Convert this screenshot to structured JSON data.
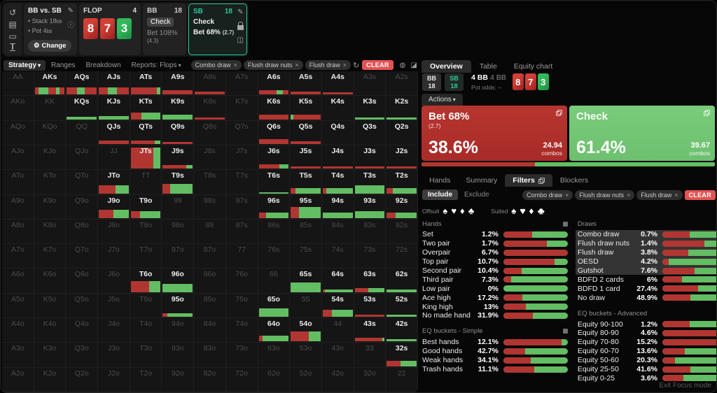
{
  "window": {
    "footer": "Exit Focus mode"
  },
  "sidebar": {
    "icons": [
      {
        "name": "reset-icon",
        "glyph": "↺"
      },
      {
        "name": "save-icon",
        "glyph": "▤"
      },
      {
        "name": "controller-icon",
        "glyph": "▭"
      },
      {
        "name": "bet-slider-icon",
        "glyph": "I",
        "cls": "ibeam"
      }
    ]
  },
  "header": {
    "config": {
      "title": "BB vs. SB",
      "bullet1": "• Stack 18",
      "bullet1_unit": "bb",
      "bullet2": "• Pot 4",
      "bullet2_unit": "bb",
      "change_label": "Change",
      "gear": "⚙",
      "info": "ⓘ",
      "pencil": "✎"
    },
    "flop": {
      "label": "FLOP",
      "count": "4",
      "cards": [
        {
          "rank": "8",
          "color": "red"
        },
        {
          "rank": "7",
          "color": "red"
        },
        {
          "rank": "3",
          "color": "green"
        }
      ]
    },
    "bb": {
      "name": "BB",
      "stack": "18",
      "check_label": "Check",
      "bet_label": "Bet 108%",
      "bet_note": "(4.3)"
    },
    "sb": {
      "name": "SB",
      "stack": "18",
      "check_label": "Check",
      "bet_label": "Bet 68%",
      "bet_note": "(2.7)",
      "pencil": "✎"
    }
  },
  "toolbar": {
    "tab_strategy": "Strategy",
    "tab_ranges": "Ranges",
    "tab_breakdown": "Breakdown",
    "tab_reports": "Reports: Flops",
    "filters": [
      "Combo draw",
      "Flush draw nuts",
      "Flush draw"
    ],
    "refresh_glyph": "↻",
    "clear_label": "CLEAR",
    "icons": [
      {
        "name": "strategy-view-icon",
        "glyph": "◍"
      },
      {
        "name": "range-split-icon",
        "glyph": "◪"
      },
      {
        "name": "grid-small-icon",
        "glyph": "∷"
      },
      {
        "name": "grid-large-icon",
        "glyph": "⠿"
      },
      {
        "name": "solid-view-icon",
        "glyph": "■"
      }
    ]
  },
  "matrix": {
    "rows": [
      [
        {
          "l": "AA"
        },
        {
          "l": "AKs",
          "on": 1,
          "h": 10,
          "s": "r12 g33 r25 g12 r18"
        },
        {
          "l": "AQs",
          "on": 1,
          "h": 10,
          "s": "r35 g25 r40"
        },
        {
          "l": "AJs",
          "on": 1,
          "h": 10,
          "s": "r30 g30 r40"
        },
        {
          "l": "ATs",
          "on": 1,
          "h": 10,
          "s": "r88 g12"
        },
        {
          "l": "A9s",
          "on": 1,
          "h": 6,
          "s": "r100"
        },
        {
          "l": "A8s",
          "h": 4,
          "s": "r100"
        },
        {
          "l": "A7s"
        },
        {
          "l": "A6s",
          "on": 1,
          "h": 6,
          "s": "r60 g20 r20"
        },
        {
          "l": "A5s",
          "on": 1,
          "h": 4,
          "s": "r100"
        },
        {
          "l": "A4s",
          "on": 1,
          "h": 3,
          "s": "r100"
        },
        {
          "l": "A3s"
        },
        {
          "l": "A2s"
        }
      ],
      [
        {
          "l": "AKo"
        },
        {
          "l": "KK"
        },
        {
          "l": "KQs",
          "on": 1,
          "h": 4,
          "s": "g100"
        },
        {
          "l": "KJs",
          "on": 1,
          "h": 5,
          "s": "g100"
        },
        {
          "l": "KTs",
          "on": 1,
          "h": 10,
          "s": "r35 g65"
        },
        {
          "l": "K9s",
          "on": 1,
          "h": 7,
          "s": "g100"
        },
        {
          "l": "K8s",
          "h": 3,
          "s": "r100"
        },
        {
          "l": "K7s"
        },
        {
          "l": "K6s",
          "on": 1,
          "h": 7,
          "s": "r100"
        },
        {
          "l": "K5s",
          "on": 1,
          "h": 7,
          "s": "g10 r90"
        },
        {
          "l": "K4s",
          "on": 1
        },
        {
          "l": "K3s",
          "on": 1,
          "h": 3,
          "s": "g100"
        },
        {
          "l": "K2s",
          "on": 1,
          "h": 3,
          "s": "g100"
        }
      ],
      [
        {
          "l": "AQo"
        },
        {
          "l": "KQo"
        },
        {
          "l": "QQ"
        },
        {
          "l": "QJs",
          "on": 1,
          "h": 5,
          "s": "r100"
        },
        {
          "l": "QTs",
          "on": 1,
          "h": 5,
          "s": "r80 g20"
        },
        {
          "l": "Q9s",
          "on": 1,
          "h": 3,
          "s": "r100"
        },
        {
          "l": "Q8s"
        },
        {
          "l": "Q7s"
        },
        {
          "l": "Q6s",
          "on": 1,
          "h": 7,
          "s": "r100"
        },
        {
          "l": "Q5s",
          "on": 1,
          "h": 4,
          "s": "r100"
        },
        {
          "l": "Q4s",
          "on": 1
        },
        {
          "l": "Q3s",
          "on": 1
        },
        {
          "l": "Q2s",
          "on": 1
        }
      ],
      [
        {
          "l": "AJo"
        },
        {
          "l": "KJo"
        },
        {
          "l": "QJo"
        },
        {
          "l": "JJ"
        },
        {
          "l": "JTs",
          "on": 1,
          "h": 30,
          "s": "r75 g25"
        },
        {
          "l": "J9s",
          "on": 1,
          "h": 5,
          "s": "r78 g22"
        },
        {
          "l": "J8s"
        },
        {
          "l": "J7s"
        },
        {
          "l": "J6s",
          "on": 1,
          "h": 6,
          "s": "r70 g30"
        },
        {
          "l": "J5s",
          "on": 1,
          "h": 3,
          "s": "r100"
        },
        {
          "l": "J4s",
          "on": 1,
          "h": 3,
          "s": "r100"
        },
        {
          "l": "J3s",
          "on": 1,
          "h": 3,
          "s": "r100"
        },
        {
          "l": "J2s",
          "on": 1,
          "h": 3,
          "s": "r100"
        }
      ],
      [
        {
          "l": "ATo"
        },
        {
          "l": "KTo"
        },
        {
          "l": "QTo"
        },
        {
          "l": "JTo",
          "on": 1,
          "h": 12,
          "s": "r55 g45"
        },
        {
          "l": "TT"
        },
        {
          "l": "T9s",
          "on": 1,
          "h": 14,
          "s": "r25 g75"
        },
        {
          "l": "T8s"
        },
        {
          "l": "T7s"
        },
        {
          "l": "T6s",
          "on": 1,
          "h": 2,
          "s": "g100"
        },
        {
          "l": "T5s",
          "on": 1,
          "h": 8,
          "s": "r15 g85"
        },
        {
          "l": "T4s",
          "on": 1,
          "h": 8,
          "s": "r12 g88"
        },
        {
          "l": "T3s",
          "on": 1,
          "h": 12,
          "s": "g100"
        },
        {
          "l": "T2s",
          "on": 1,
          "h": 8,
          "s": "r20 g80"
        }
      ],
      [
        {
          "l": "A9o"
        },
        {
          "l": "K9o"
        },
        {
          "l": "Q9o"
        },
        {
          "l": "J9o",
          "on": 1,
          "h": 12,
          "s": "r50 g50"
        },
        {
          "l": "T9o",
          "on": 1,
          "h": 10,
          "s": "r30 g70"
        },
        {
          "l": "99"
        },
        {
          "l": "98s"
        },
        {
          "l": "97s"
        },
        {
          "l": "96s",
          "on": 1,
          "h": 8,
          "s": "r25 g75"
        },
        {
          "l": "95s",
          "on": 1,
          "h": 16,
          "s": "r28 g72"
        },
        {
          "l": "94s",
          "on": 1,
          "h": 8,
          "s": "g100"
        },
        {
          "l": "93s",
          "on": 1,
          "h": 10,
          "s": "g100"
        },
        {
          "l": "92s",
          "on": 1,
          "h": 8,
          "s": "r30 g70"
        }
      ],
      [
        {
          "l": "A8o"
        },
        {
          "l": "K8o"
        },
        {
          "l": "Q8o"
        },
        {
          "l": "J8o"
        },
        {
          "l": "T8o"
        },
        {
          "l": "98o"
        },
        {
          "l": "88"
        },
        {
          "l": "87s"
        },
        {
          "l": "86s"
        },
        {
          "l": "85s"
        },
        {
          "l": "84s"
        },
        {
          "l": "83s"
        },
        {
          "l": "82s"
        }
      ],
      [
        {
          "l": "A7o"
        },
        {
          "l": "K7o"
        },
        {
          "l": "Q7o"
        },
        {
          "l": "J7o"
        },
        {
          "l": "T7o"
        },
        {
          "l": "97o"
        },
        {
          "l": "87o"
        },
        {
          "l": "77"
        },
        {
          "l": "76s"
        },
        {
          "l": "75s"
        },
        {
          "l": "74s"
        },
        {
          "l": "73s"
        },
        {
          "l": "72s"
        }
      ],
      [
        {
          "l": "A6o"
        },
        {
          "l": "K6o"
        },
        {
          "l": "Q6o"
        },
        {
          "l": "J6o"
        },
        {
          "l": "T6o",
          "on": 1,
          "h": 16,
          "s": "r62 g38"
        },
        {
          "l": "96o",
          "on": 1,
          "h": 12,
          "s": "g100"
        },
        {
          "l": "86o"
        },
        {
          "l": "76o"
        },
        {
          "l": "66"
        },
        {
          "l": "65s",
          "on": 1,
          "h": 14,
          "s": "g100"
        },
        {
          "l": "64s",
          "on": 1,
          "h": 4,
          "s": "r8 g92"
        },
        {
          "l": "63s",
          "on": 1,
          "h": 6,
          "s": "r45 g55"
        },
        {
          "l": "62s",
          "on": 1,
          "h": 4,
          "s": "g100"
        }
      ],
      [
        {
          "l": "A5o"
        },
        {
          "l": "K5o"
        },
        {
          "l": "Q5o"
        },
        {
          "l": "J5o"
        },
        {
          "l": "T5o"
        },
        {
          "l": "95o",
          "on": 1,
          "h": 5,
          "s": "r15 g85"
        },
        {
          "l": "85o"
        },
        {
          "l": "75o"
        },
        {
          "l": "65o",
          "on": 1,
          "h": 12,
          "s": "g100"
        },
        {
          "l": "55"
        },
        {
          "l": "54s",
          "on": 1,
          "h": 10,
          "s": "r30 g70"
        },
        {
          "l": "53s",
          "on": 1,
          "h": 3,
          "s": "r100"
        },
        {
          "l": "52s",
          "on": 1,
          "h": 3,
          "s": "g100"
        }
      ],
      [
        {
          "l": "A4o"
        },
        {
          "l": "K4o"
        },
        {
          "l": "Q4o"
        },
        {
          "l": "J4o"
        },
        {
          "l": "T4o"
        },
        {
          "l": "94o"
        },
        {
          "l": "84o"
        },
        {
          "l": "74o"
        },
        {
          "l": "64o",
          "on": 1,
          "h": 8,
          "s": "r12 g88"
        },
        {
          "l": "54o",
          "on": 1,
          "h": 14,
          "s": "r60 g40"
        },
        {
          "l": "44"
        },
        {
          "l": "43s",
          "on": 1,
          "h": 5,
          "s": "r92 g8"
        },
        {
          "l": "42s",
          "on": 1,
          "h": 3,
          "s": "g100"
        }
      ],
      [
        {
          "l": "A3o"
        },
        {
          "l": "K3o"
        },
        {
          "l": "Q3o"
        },
        {
          "l": "J3o"
        },
        {
          "l": "T3o"
        },
        {
          "l": "93o"
        },
        {
          "l": "83o"
        },
        {
          "l": "73o"
        },
        {
          "l": "63o"
        },
        {
          "l": "53o"
        },
        {
          "l": "43o"
        },
        {
          "l": "33"
        },
        {
          "l": "32s",
          "on": 1,
          "h": 8,
          "s": "r45 g55"
        }
      ],
      [
        {
          "l": "A2o"
        },
        {
          "l": "K2o"
        },
        {
          "l": "Q2o"
        },
        {
          "l": "J2o"
        },
        {
          "l": "T2o"
        },
        {
          "l": "92o"
        },
        {
          "l": "82o"
        },
        {
          "l": "72o"
        },
        {
          "l": "62o"
        },
        {
          "l": "52o"
        },
        {
          "l": "42o"
        },
        {
          "l": "32o"
        },
        {
          "l": "22"
        }
      ]
    ]
  },
  "right": {
    "tab_overview": "Overview",
    "tab_table": "Table",
    "tab_equity": "Equity chart",
    "bb_badge": {
      "name": "BB",
      "stack": "18"
    },
    "sb_badge": {
      "name": "SB",
      "stack": "18"
    },
    "pot": {
      "bold": "4 BB",
      "dim": "4 BB",
      "odds_label": "Pot odds:",
      "odds_value": "–"
    },
    "actions_label": "Actions",
    "bet_box": {
      "title": "Bet 68%",
      "note": "(2.7)",
      "freq": "38.6%",
      "combos": "24.94",
      "combos_label": "combos"
    },
    "check_box": {
      "title": "Check",
      "freq": "61.4%",
      "combos": "39.67",
      "combos_label": "combos"
    },
    "strip": {
      "red_pct": 38.6
    },
    "subtab_hands": "Hands",
    "subtab_summary": "Summary",
    "subtab_filters": "Filters",
    "subtab_blockers": "Blockers",
    "filter_mode": {
      "include": "Include",
      "exclude": "Exclude"
    },
    "filters": [
      "Combo draw",
      "Flush draw nuts",
      "Flush draw"
    ],
    "clear_label": "CLEAR",
    "suits": {
      "offsuit_label": "Offsuit",
      "suited_label": "Suited",
      "glyphs": [
        "♠",
        "♥",
        "♦",
        "♣"
      ]
    },
    "sections": {
      "hands": {
        "title": "Hands",
        "rows": [
          {
            "label": "Set",
            "pct": "1.2%",
            "red": 45
          },
          {
            "label": "Two pair",
            "pct": "1.7%",
            "red": 68
          },
          {
            "label": "Overpair",
            "pct": "6.7%",
            "red": 100
          },
          {
            "label": "Top pair",
            "pct": "10.7%",
            "red": 80
          },
          {
            "label": "Second pair",
            "pct": "10.4%",
            "red": 28
          },
          {
            "label": "Third pair",
            "pct": "7.3%",
            "red": 12
          },
          {
            "label": "Low pair",
            "pct": "0%",
            "red": 0
          },
          {
            "label": "Ace high",
            "pct": "17.2%",
            "red": 30
          },
          {
            "label": "King high",
            "pct": "13%",
            "red": 35
          },
          {
            "label": "No made hand",
            "pct": "31.9%",
            "red": 46
          }
        ]
      },
      "eq_simple": {
        "title": "EQ buckets - Simple",
        "rows": [
          {
            "label": "Best hands",
            "pct": "12.1%",
            "red": 90
          },
          {
            "label": "Good hands",
            "pct": "42.7%",
            "red": 34
          },
          {
            "label": "Weak hands",
            "pct": "34.1%",
            "red": 42
          },
          {
            "label": "Trash hands",
            "pct": "11.1%",
            "red": 48
          }
        ]
      },
      "draws": {
        "title": "Draws",
        "rows": [
          {
            "label": "Combo draw",
            "pct": "0.7%",
            "red": 42,
            "hl": 1
          },
          {
            "label": "Flush draw nuts",
            "pct": "1.4%",
            "red": 65,
            "hl": 1
          },
          {
            "label": "Flush draw",
            "pct": "3.8%",
            "red": 40,
            "hl": 1
          },
          {
            "label": "OESD",
            "pct": "4.2%",
            "red": 10,
            "hl": 1
          },
          {
            "label": "Gutshot",
            "pct": "7.6%",
            "red": 50,
            "hl": 1
          },
          {
            "label": "BDFD 2 cards",
            "pct": "6%",
            "red": 30
          },
          {
            "label": "BDFD 1 card",
            "pct": "27.4%",
            "red": 55
          },
          {
            "label": "No draw",
            "pct": "48.9%",
            "red": 44
          }
        ]
      },
      "eq_adv": {
        "title": "EQ buckets - Advanced",
        "rows": [
          {
            "label": "Equity 90-100",
            "pct": "1.2%",
            "red": 42
          },
          {
            "label": "Equity 80-90",
            "pct": "4.6%",
            "red": 88
          },
          {
            "label": "Equity 70-80",
            "pct": "15.2%",
            "red": 85
          },
          {
            "label": "Equity 60-70",
            "pct": "13.6%",
            "red": 35
          },
          {
            "label": "Equity 50-60",
            "pct": "20.3%",
            "red": 20
          },
          {
            "label": "Equity 25-50",
            "pct": "41.6%",
            "red": 44
          },
          {
            "label": "Equity 0-25",
            "pct": "3.6%",
            "red": 33
          }
        ]
      }
    }
  }
}
